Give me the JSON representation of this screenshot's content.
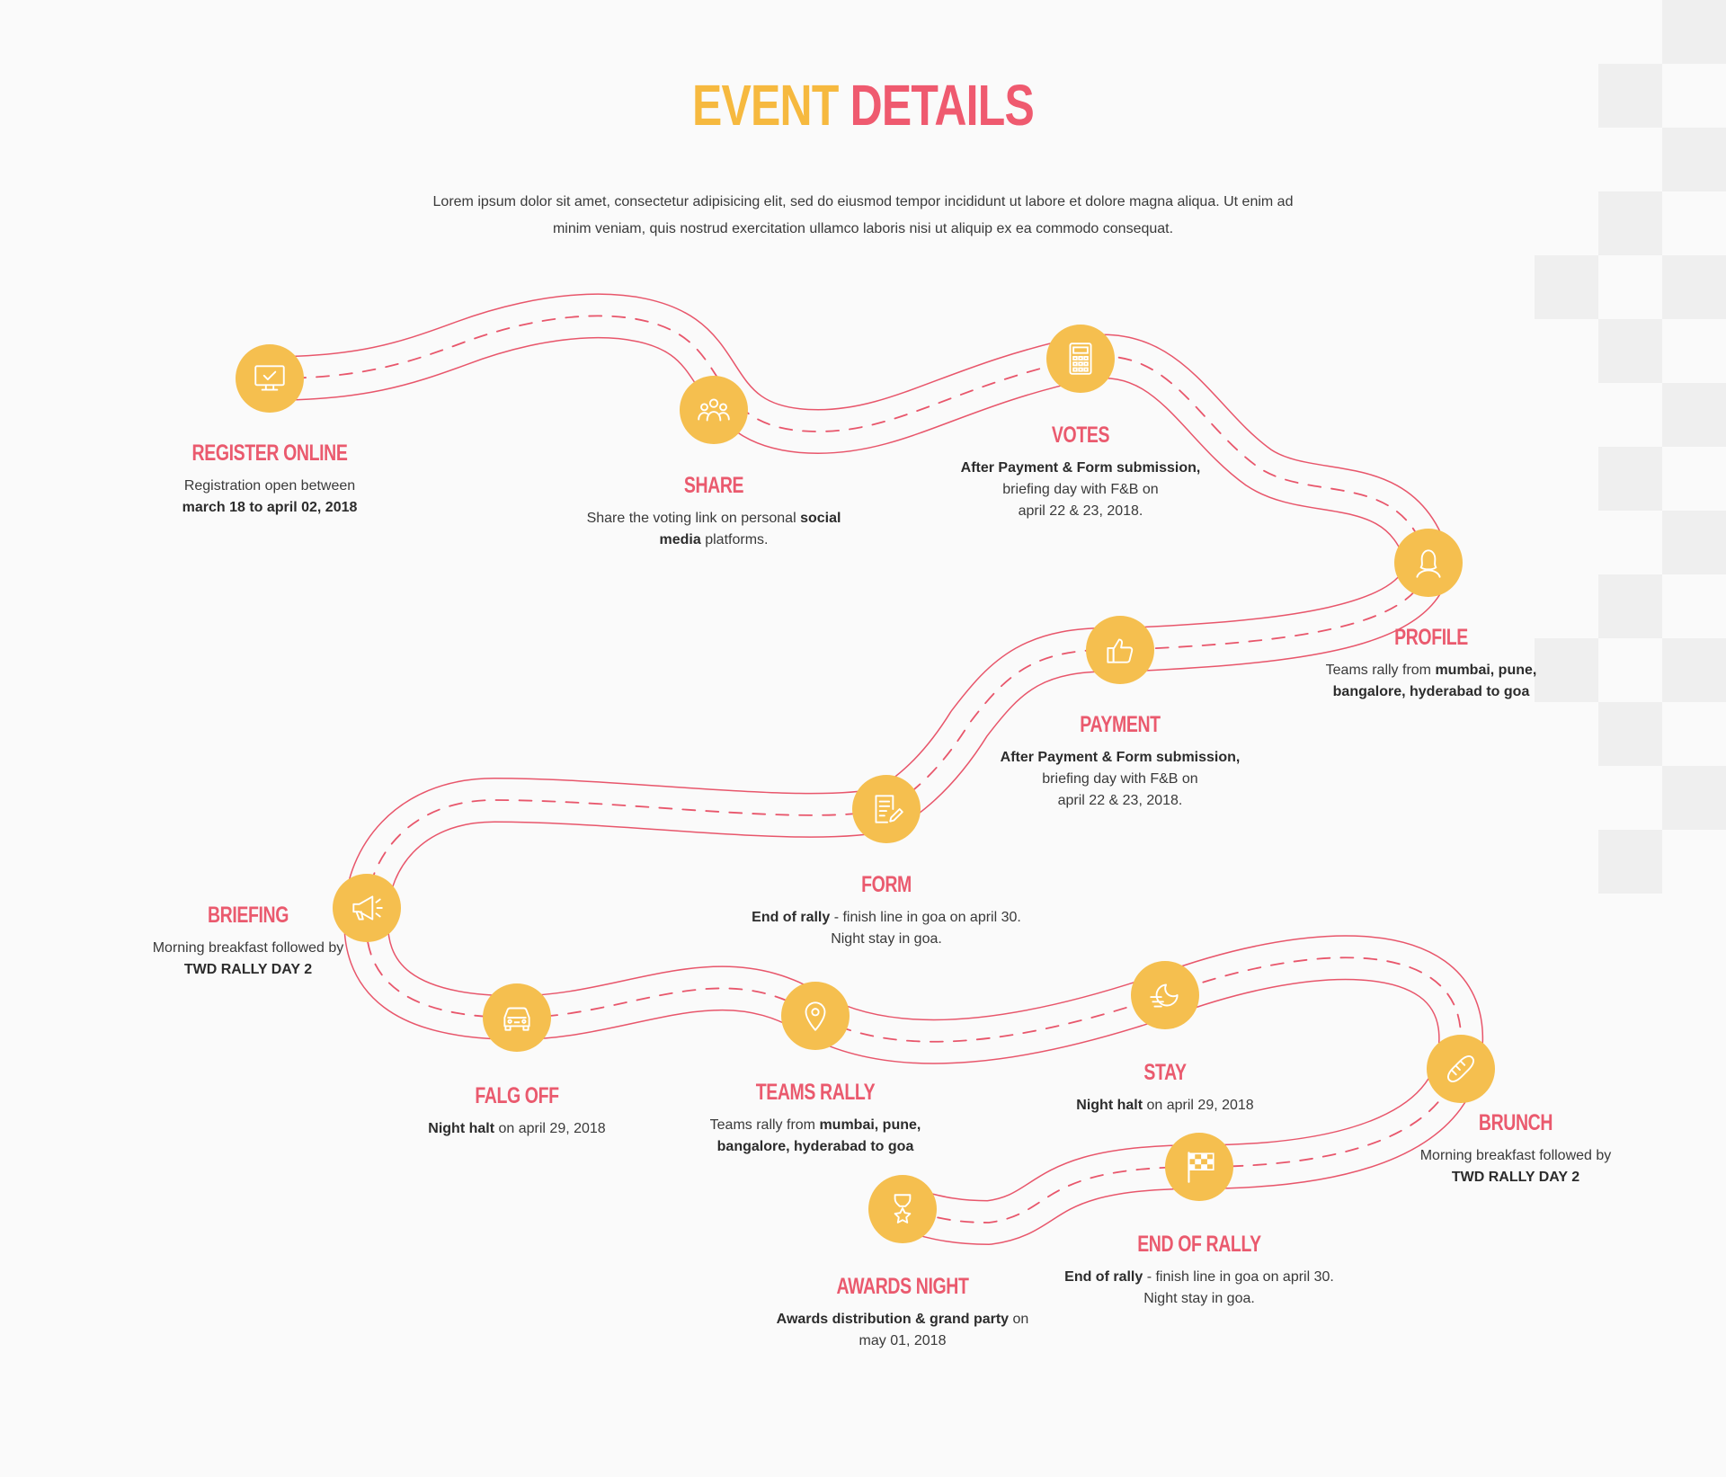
{
  "header": {
    "title_part1": "EVENT",
    "title_part2": "DETAILS",
    "intro": "Lorem ipsum dolor sit amet, consectetur adipisicing elit, sed do eiusmod tempor incididunt ut labore et dolore magna aliqua. Ut enim ad minim veniam, quis nostrud exercitation ullamco laboris nisi ut aliquip ex ea commodo consequat."
  },
  "colors": {
    "accent": "#f5bf4f",
    "heading": "#ea5a6e",
    "road": "#e8566b",
    "background": "#fafafa"
  },
  "steps": [
    {
      "title": "REGISTER ONLINE",
      "icon": "monitor-check-icon",
      "desc": [
        {
          "t": "Registration open between",
          "b": false
        },
        {
          "br": true
        },
        {
          "t": "march 18  to april 02, 2018",
          "b": true
        }
      ]
    },
    {
      "title": "SHARE",
      "icon": "people-group-icon",
      "desc": [
        {
          "t": "Share the voting link on personal ",
          "b": false
        },
        {
          "t": "social",
          "b": true
        },
        {
          "br": true
        },
        {
          "t": "media",
          "b": true
        },
        {
          "t": " platforms.",
          "b": false
        }
      ]
    },
    {
      "title": "VOTES",
      "icon": "calculator-icon",
      "desc": [
        {
          "t": "After Payment & Form submission,",
          "b": true
        },
        {
          "br": true
        },
        {
          "t": "briefing day with F&B on",
          "b": false
        },
        {
          "br": true
        },
        {
          "t": "april 22 & 23, 2018.",
          "b": false
        }
      ]
    },
    {
      "title": "PROFILE",
      "icon": "user-icon",
      "desc": [
        {
          "t": "Teams rally from ",
          "b": false
        },
        {
          "t": "mumbai, pune,",
          "b": true
        },
        {
          "br": true
        },
        {
          "t": "bangalore, hyderabad to goa",
          "b": true
        }
      ]
    },
    {
      "title": "PAYMENT",
      "icon": "thumbs-up-icon",
      "desc": [
        {
          "t": "After Payment & Form submission,",
          "b": true
        },
        {
          "br": true
        },
        {
          "t": "briefing day with F&B on",
          "b": false
        },
        {
          "br": true
        },
        {
          "t": "april 22 & 23, 2018.",
          "b": false
        }
      ]
    },
    {
      "title": "FORM",
      "icon": "document-edit-icon",
      "desc": [
        {
          "t": "End of rally",
          "b": true
        },
        {
          "t": " - finish line in goa on april 30.",
          "b": false
        },
        {
          "br": true
        },
        {
          "t": "Night stay in goa.",
          "b": false
        }
      ]
    },
    {
      "title": "BRIEFING",
      "icon": "megaphone-icon",
      "desc": [
        {
          "t": "Morning breakfast followed by",
          "b": false
        },
        {
          "br": true
        },
        {
          "t": "TWD RALLY DAY 2",
          "b": true
        }
      ]
    },
    {
      "title": "FALG OFF",
      "icon": "car-icon",
      "desc": [
        {
          "t": "Night halt",
          "b": true
        },
        {
          "t": " on april 29, 2018",
          "b": false
        }
      ]
    },
    {
      "title": "TEAMS RALLY",
      "icon": "map-pin-icon",
      "desc": [
        {
          "t": "Teams rally from ",
          "b": false
        },
        {
          "t": "mumbai, pune,",
          "b": true
        },
        {
          "br": true
        },
        {
          "t": "bangalore, hyderabad to goa",
          "b": true
        }
      ]
    },
    {
      "title": "STAY",
      "icon": "moon-icon",
      "desc": [
        {
          "t": "Night halt",
          "b": true
        },
        {
          "t": " on april 29, 2018",
          "b": false
        }
      ]
    },
    {
      "title": "BRUNCH",
      "icon": "bread-icon",
      "desc": [
        {
          "t": "Morning breakfast followed by",
          "b": false
        },
        {
          "br": true
        },
        {
          "t": "TWD RALLY DAY 2",
          "b": true
        }
      ]
    },
    {
      "title": "END OF RALLY",
      "icon": "checkered-flag-icon",
      "desc": [
        {
          "t": "End of rally",
          "b": true
        },
        {
          "t": " - finish line in goa on april 30.",
          "b": false
        },
        {
          "br": true
        },
        {
          "t": "Night stay in goa.",
          "b": false
        }
      ]
    },
    {
      "title": "AWARDS NIGHT",
      "icon": "trophy-star-icon",
      "desc": [
        {
          "t": "Awards distribution & grand party",
          "b": true
        },
        {
          "t": " on",
          "b": false
        },
        {
          "br": true
        },
        {
          "t": "may 01, 2018",
          "b": false
        }
      ]
    }
  ]
}
